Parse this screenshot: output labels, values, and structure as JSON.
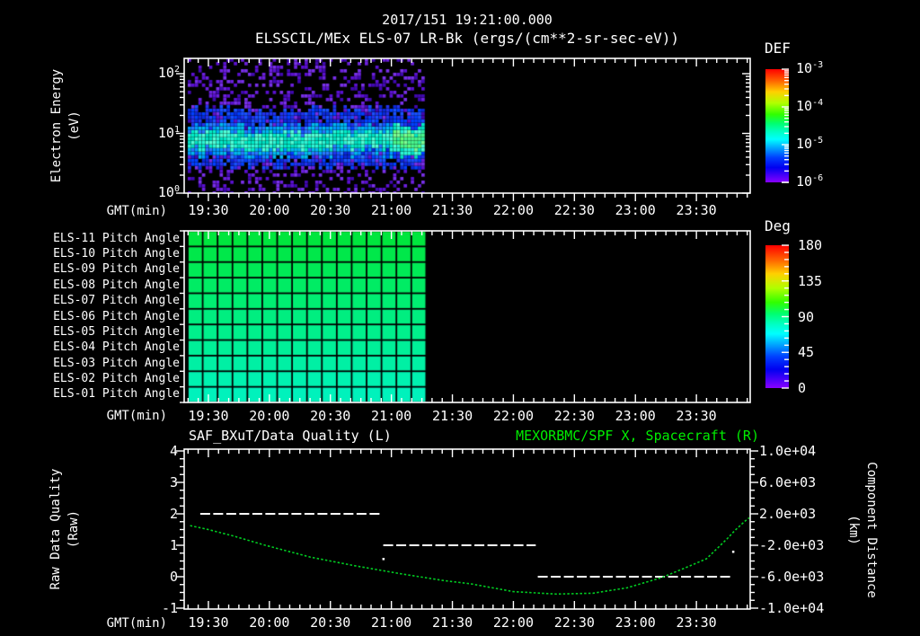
{
  "header": {
    "date_time": "2017/151 19:21:00.000",
    "source_line": "ELSSCIL/MEx ELS-07 LR-Bk  (ergs/(cm**2-sr-sec-eV))"
  },
  "time_axis": {
    "label": "GMT(min)",
    "tick_labels": [
      "19:30",
      "20:00",
      "20:30",
      "21:00",
      "21:30",
      "22:00",
      "22:30",
      "23:00",
      "23:30"
    ],
    "start": "19:18",
    "end": "23:56",
    "minor_step_min": 5,
    "major_step_min": 30
  },
  "chart_data": [
    {
      "type": "heatmap",
      "name": "electron-energy-spectrogram",
      "instrument": "ELSSCIL/MEx ELS-07 LR-Bk",
      "units": "ergs/(cm**2-sr-sec-eV)",
      "ylabel_lines": [
        "Electron Energy",
        "(eV)"
      ],
      "yscale": "log",
      "ytick_exponents": [
        2,
        1,
        0
      ],
      "ylim_ev": [
        1,
        180
      ],
      "xlabel": "GMT(min)",
      "data_start": "19:18",
      "data_end": "21:18",
      "features": {
        "core_band": {
          "energy_ev": [
            4.5,
            14
          ],
          "peak_flux": "1e-4.5",
          "color": "cyan"
        },
        "halo_band": {
          "energy_ev": [
            2.8,
            27
          ],
          "flux": "1e-5.5",
          "color": "blue"
        },
        "noise_speckle": {
          "energy_ev": [
            1,
            180
          ],
          "flux": "1e-6",
          "color": "purple"
        },
        "brightening": {
          "from": "21:02",
          "to": "21:18",
          "peak_flux": "1e-4.2",
          "color": "green"
        }
      },
      "colorbar": {
        "label": "DEF",
        "tick_exponents": [
          -3,
          -4,
          -5,
          -6
        ]
      }
    },
    {
      "type": "heatmap",
      "name": "pitch-angle-grid",
      "xlabel": "GMT(min)",
      "columns": 16,
      "data_start": "19:18",
      "data_end": "21:18",
      "rows": [
        {
          "label": "ELS-11 Pitch Angle",
          "deg": 100,
          "color": "#00e63e"
        },
        {
          "label": "ELS-10 Pitch Angle",
          "deg": 98,
          "color": "#00e84a"
        },
        {
          "label": "ELS-09 Pitch Angle",
          "deg": 96,
          "color": "#00ea56"
        },
        {
          "label": "ELS-08 Pitch Angle",
          "deg": 94,
          "color": "#00ec64"
        },
        {
          "label": "ELS-07 Pitch Angle",
          "deg": 92,
          "color": "#00ee72"
        },
        {
          "label": "ELS-06 Pitch Angle",
          "deg": 90,
          "color": "#00ee80"
        },
        {
          "label": "ELS-05 Pitch Angle",
          "deg": 88,
          "color": "#00f08c"
        },
        {
          "label": "ELS-04 Pitch Angle",
          "deg": 86,
          "color": "#00f098"
        },
        {
          "label": "ELS-03 Pitch Angle",
          "deg": 84,
          "color": "#00f0a4"
        },
        {
          "label": "ELS-02 Pitch Angle",
          "deg": 82,
          "color": "#00f2b0"
        },
        {
          "label": "ELS-01 Pitch Angle",
          "deg": 80,
          "color": "#00f2bc"
        }
      ],
      "colorbar": {
        "label": "Deg",
        "ticks": [
          180,
          135,
          90,
          45,
          0
        ]
      }
    },
    {
      "type": "line",
      "name": "quality-and-distance",
      "title_left": "SAF_BXuT/Data Quality (L)",
      "title_right": "MEXORBMC/SPF X, Spacecraft (R)",
      "xlabel": "GMT(min)",
      "left_axis": {
        "label_lines": [
          "Raw Data Quality",
          "(Raw)"
        ],
        "ticks": [
          4,
          3,
          2,
          1,
          0,
          -1
        ],
        "lim": [
          -1.05,
          4.05
        ]
      },
      "right_axis": {
        "label_lines": [
          "Component Distance",
          "(km)"
        ],
        "ticks": [
          "1.0e+04",
          "6.0e+03",
          "2.0e+03",
          "-2.0e+03",
          "-6.0e+03",
          "-1.0e+04"
        ],
        "lim": [
          -10150,
          10150
        ]
      },
      "series": [
        {
          "name": "SAF_BXuT/Data Quality",
          "axis": "left",
          "style": "dashed",
          "color": "#ffffff",
          "steps": [
            {
              "value": 2,
              "from": "19:26",
              "to": "20:55"
            },
            {
              "value": 1,
              "from": "20:56",
              "to": "22:11"
            },
            {
              "value": 0,
              "from": "22:12",
              "to": "23:48"
            }
          ],
          "stray_points": [
            {
              "t": "20:56",
              "value": 0.57
            },
            {
              "t": "23:48",
              "value": 0.8
            }
          ]
        },
        {
          "name": "MEXORBMC/SPF X Spacecraft",
          "axis": "right",
          "style": "dotted",
          "color": "#00cc22",
          "points_time_km": [
            [
              "19:21",
              500
            ],
            [
              "19:30",
              0
            ],
            [
              "19:42",
              -800
            ],
            [
              "19:58",
              -2000
            ],
            [
              "20:20",
              -3500
            ],
            [
              "20:42",
              -4600
            ],
            [
              "21:04",
              -5600
            ],
            [
              "21:26",
              -6500
            ],
            [
              "21:39",
              -6900
            ],
            [
              "22:00",
              -7900
            ],
            [
              "22:21",
              -8200
            ],
            [
              "22:39",
              -8100
            ],
            [
              "22:56",
              -7400
            ],
            [
              "23:13",
              -6100
            ],
            [
              "23:27",
              -4600
            ],
            [
              "23:35",
              -3700
            ],
            [
              "23:45",
              -1200
            ],
            [
              "23:49",
              -100
            ],
            [
              "23:54",
              1100
            ],
            [
              "23:56",
              1500
            ]
          ]
        }
      ]
    }
  ],
  "palette": {
    "background": "#000000",
    "axis": "#ffffff",
    "text": "#ffffff",
    "green_title": "#00ee00",
    "green_series": "#00cc22",
    "quality_white": "#ffffff",
    "spec_core": [
      "#00ecc8",
      "#2af5d6",
      "#00dfc2",
      "#50ffd8"
    ],
    "spec_core_bright": [
      "#48f78e",
      "#62ff7c",
      "#30f0a2",
      "#7cff94"
    ],
    "spec_mid": [
      "#0098ff",
      "#00b8f0",
      "#2878ff"
    ],
    "spec_blue": [
      "#0040ff",
      "#2232ee",
      "#0a28d8",
      "#1850ff"
    ],
    "spec_purple": [
      "#5a10d0",
      "#7830e8",
      "#4008b0",
      "#6b20dd"
    ],
    "rainbow": [
      [
        "0",
        "#ff0000"
      ],
      [
        "0.10",
        "#ff6000"
      ],
      [
        "0.20",
        "#ffd000"
      ],
      [
        "0.30",
        "#b0ff00"
      ],
      [
        "0.40",
        "#30ff00"
      ],
      [
        "0.48",
        "#00ff70"
      ],
      [
        "0.55",
        "#00ffc0"
      ],
      [
        "0.62",
        "#00ffff"
      ],
      [
        "0.70",
        "#00a0ff"
      ],
      [
        "0.78",
        "#0040ff"
      ],
      [
        "0.87",
        "#0000f0"
      ],
      [
        "1",
        "#8800ff"
      ]
    ]
  }
}
